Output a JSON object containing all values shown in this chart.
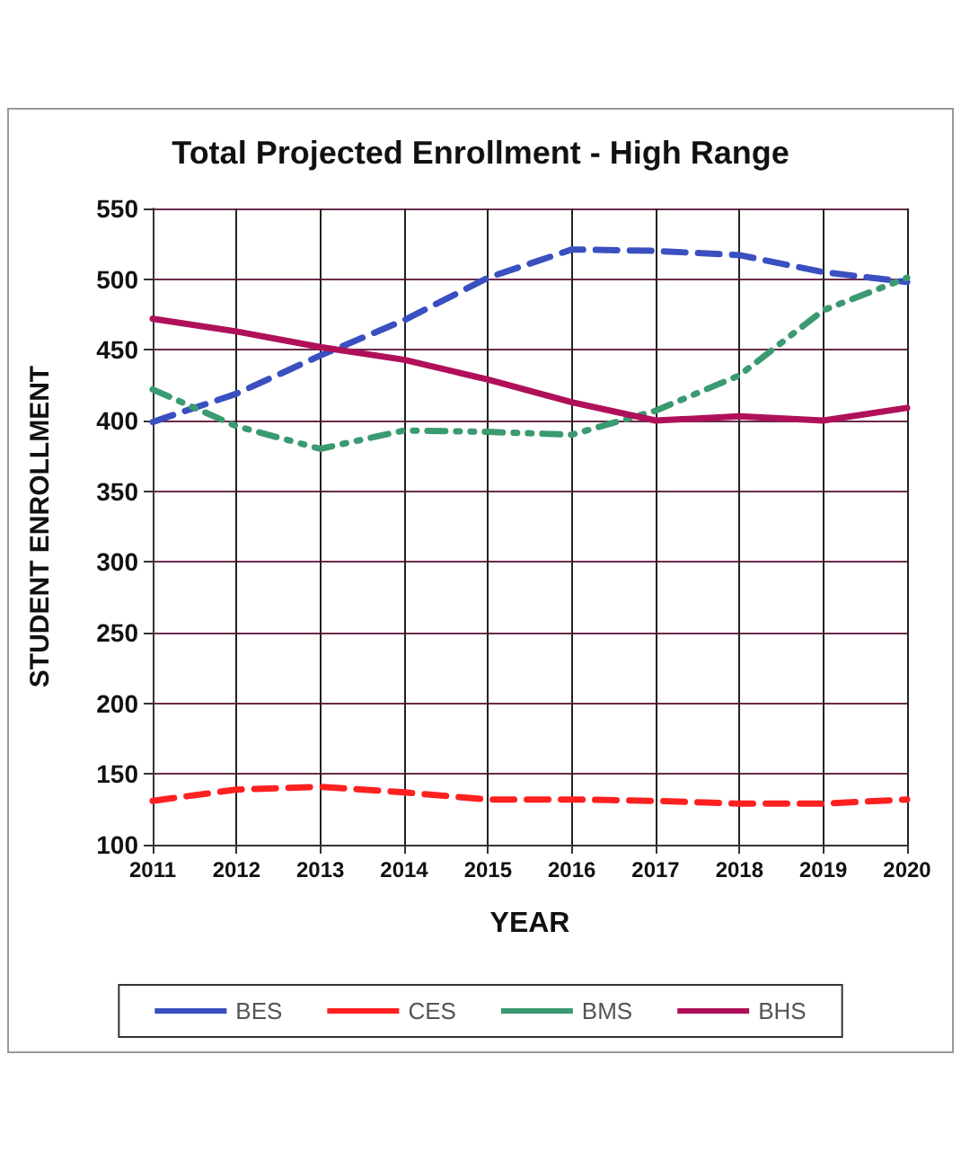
{
  "chart_data": {
    "type": "line",
    "title": "Total Projected Enrollment - High Range",
    "xlabel": "YEAR",
    "ylabel": "STUDENT ENROLLMENT",
    "categories": [
      "2011",
      "2012",
      "2013",
      "2014",
      "2015",
      "2016",
      "2017",
      "2018",
      "2019",
      "2020"
    ],
    "series": [
      {
        "name": "BES",
        "color": "#3a4fc0",
        "line_style": "dashed",
        "values": [
          399,
          419,
          446,
          471,
          501,
          521,
          520,
          517,
          505,
          498
        ]
      },
      {
        "name": "CES",
        "color": "#ff2020",
        "line_style": "dashed",
        "values": [
          131,
          139,
          141,
          137,
          132,
          132,
          131,
          129,
          129,
          132
        ]
      },
      {
        "name": "BMS",
        "color": "#3a9a70",
        "line_style": "dotted",
        "values": [
          422,
          396,
          380,
          393,
          392,
          390,
          407,
          432,
          478,
          501
        ]
      },
      {
        "name": "BHS",
        "color": "#b0105a",
        "line_style": "solid",
        "values": [
          472,
          463,
          452,
          443,
          429,
          413,
          400,
          403,
          400,
          409
        ]
      }
    ],
    "ylim": [
      100,
      550
    ],
    "yticks": [
      100,
      150,
      200,
      250,
      300,
      350,
      400,
      450,
      500,
      550
    ],
    "grid": true,
    "legend": "bottom",
    "marker": "none"
  }
}
